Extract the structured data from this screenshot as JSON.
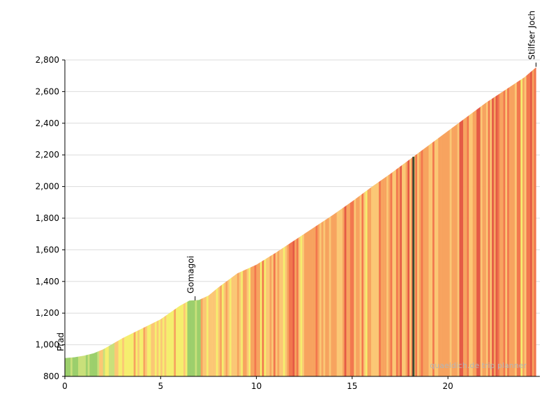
{
  "chart_data": {
    "type": "area",
    "title": "",
    "xlabel": "",
    "ylabel": "",
    "xlim": [
      0,
      24.8
    ],
    "ylim": [
      800,
      2800
    ],
    "x_ticks": [
      0,
      5,
      10,
      15,
      20
    ],
    "x_tick_labels": [
      "0",
      "5",
      "10",
      "15",
      "20"
    ],
    "y_ticks": [
      800,
      1000,
      1200,
      1400,
      1600,
      1800,
      2000,
      2200,
      2400,
      2600,
      2800
    ],
    "y_tick_labels": [
      "800",
      "1,000",
      "1,200",
      "1,400",
      "1,600",
      "1,800",
      "2,000",
      "2,200",
      "2,400",
      "2,600",
      "2,800"
    ],
    "grid": true,
    "profile": {
      "x": [
        0,
        0.5,
        1,
        1.5,
        2,
        2.5,
        3,
        4,
        5,
        6,
        6.5,
        7,
        7.5,
        8,
        9,
        10,
        11,
        12,
        13,
        14,
        15,
        16,
        17,
        18,
        19,
        20,
        21,
        22,
        23,
        24,
        24.6
      ],
      "y": [
        915,
        920,
        930,
        945,
        970,
        1005,
        1040,
        1100,
        1160,
        1245,
        1278,
        1282,
        1310,
        1360,
        1450,
        1505,
        1580,
        1660,
        1740,
        1820,
        1905,
        1995,
        2080,
        2170,
        2260,
        2350,
        2440,
        2530,
        2610,
        2690,
        2752
      ]
    },
    "places": [
      {
        "name": "Prad",
        "x": 0,
        "elevation": 915
      },
      {
        "name": "Gomagoi",
        "x": 6.8,
        "elevation": 1280
      },
      {
        "name": "Stilfser Joch",
        "x": 24.6,
        "elevation": 2757
      }
    ],
    "gradient_colors": {
      "flat": "#9ccf6c",
      "easy": "#c9e07a",
      "moderate": "#f5ee6e",
      "medium": "#fbc775",
      "steep": "#f7a35f",
      "hard": "#f2774e",
      "very_hard": "#e45a45",
      "extreme": "#3f4d33"
    }
  },
  "watermark": "quaeldich.de trip planner"
}
